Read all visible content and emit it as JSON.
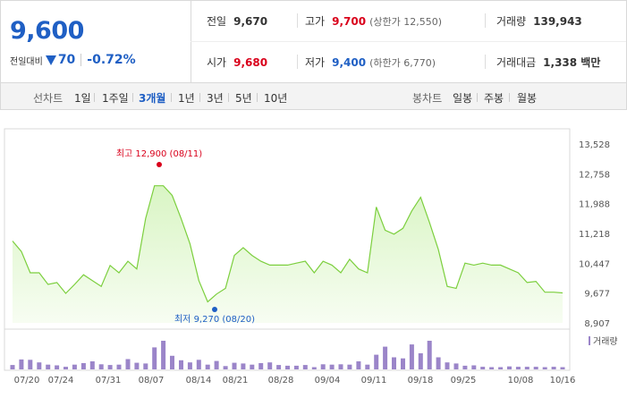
{
  "quote": {
    "price": "9,600",
    "change_label": "전일대비",
    "change_amount": "70",
    "change_percent": "-0.72%",
    "prev_close_label": "전일",
    "prev_close": "9,670",
    "high_label": "고가",
    "high": "9,700",
    "upper_limit": "(상한가 12,550)",
    "volume_label": "거래량",
    "volume": "139,943",
    "open_label": "시가",
    "open": "9,680",
    "low_label": "저가",
    "low": "9,400",
    "lower_limit": "(하한가 6,770)",
    "amount_label": "거래대금",
    "amount": "1,338 백만"
  },
  "periods": {
    "line_label": "선차트",
    "line_items": [
      "1일",
      "1주일",
      "3개월",
      "1년",
      "3년",
      "5년",
      "10년"
    ],
    "active": "3개월",
    "candle_label": "봉차트",
    "candle_items": [
      "일봉",
      "주봉",
      "월봉"
    ]
  },
  "colors": {
    "up": "#d9001b",
    "down": "#1f5fc4",
    "line": "#7ccf3e",
    "fill": "#eefae3",
    "volume": "#9b85c9"
  },
  "chart_data": {
    "type": "area",
    "y_ticks": [
      "13,528",
      "12,758",
      "11,988",
      "11,218",
      "10,447",
      "9,677",
      "8,907"
    ],
    "ylim": [
      8907,
      13528
    ],
    "x_ticks": [
      "07/20",
      "07/24",
      "07/31",
      "08/07",
      "08/14",
      "08/21",
      "08/28",
      "09/04",
      "09/11",
      "09/18",
      "09/25",
      "10/08",
      "10/16"
    ],
    "high_annotation": "최고 12,900 (08/11)",
    "low_annotation": "최저 9,270 (08/20)",
    "volume_legend": "거래량",
    "prices": [
      11020,
      10750,
      10200,
      10200,
      9900,
      9950,
      9670,
      9900,
      10150,
      10000,
      9850,
      10390,
      10200,
      10500,
      10300,
      11600,
      12450,
      12450,
      12200,
      11600,
      10950,
      10000,
      9450,
      9650,
      9800,
      10650,
      10850,
      10650,
      10500,
      10400,
      10400,
      10400,
      10450,
      10500,
      10200,
      10500,
      10400,
      10200,
      10550,
      10300,
      10200,
      11900,
      11300,
      11200,
      11350,
      11800,
      12150,
      11500,
      10800,
      9850,
      9800,
      10450,
      10400,
      10450,
      10400,
      10400,
      10300,
      10200,
      9950,
      9980,
      9700,
      9700,
      9680
    ],
    "volumes": [
      0.12,
      0.27,
      0.26,
      0.19,
      0.13,
      0.11,
      0.07,
      0.13,
      0.17,
      0.22,
      0.14,
      0.12,
      0.13,
      0.28,
      0.18,
      0.16,
      0.6,
      0.78,
      0.37,
      0.25,
      0.19,
      0.26,
      0.13,
      0.23,
      0.09,
      0.18,
      0.16,
      0.13,
      0.17,
      0.19,
      0.12,
      0.1,
      0.1,
      0.12,
      0.06,
      0.14,
      0.13,
      0.14,
      0.13,
      0.22,
      0.13,
      0.4,
      0.62,
      0.33,
      0.3,
      0.68,
      0.44,
      0.78,
      0.33,
      0.19,
      0.16,
      0.1,
      0.11,
      0.07,
      0.06,
      0.06,
      0.08,
      0.07,
      0.07,
      0.07,
      0.06,
      0.07,
      0.06
    ]
  }
}
